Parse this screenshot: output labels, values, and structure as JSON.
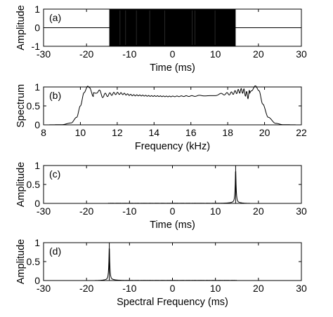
{
  "chart_data": [
    {
      "type": "line",
      "panel_label": "(a)",
      "xlabel": "Time (ms)",
      "ylabel": "Amplitude",
      "xlim": [
        -30,
        30
      ],
      "ylim": [
        -1,
        1
      ],
      "xticks": [
        "-30",
        "-20",
        "-10",
        "0",
        "10",
        "20",
        "30"
      ],
      "yticks": [
        "-1",
        "0",
        "1"
      ],
      "series": [
        {
          "description": "dense oscillating burst (chirp)",
          "x_start": -14.7,
          "x_end": 14.7,
          "amplitude": 1
        }
      ]
    },
    {
      "type": "line",
      "panel_label": "(b)",
      "xlabel": "Frequency (kHz)",
      "ylabel": "Spectrum",
      "xlim": [
        8,
        22
      ],
      "ylim": [
        0,
        1
      ],
      "xticks": [
        "8",
        "10",
        "12",
        "14",
        "16",
        "18",
        "20",
        "22"
      ],
      "yticks": [
        "0",
        "0.5",
        "1"
      ],
      "series": [
        {
          "x": [
            8,
            9,
            9.5,
            9.8,
            10.0,
            10.2,
            10.4,
            10.5,
            10.7,
            10.9,
            11.2,
            12,
            13,
            14,
            14.8,
            16,
            17,
            18,
            18.8,
            19.1,
            19.3,
            19.5,
            19.7,
            19.9,
            20.2,
            20.6,
            21,
            22
          ],
          "y": [
            0,
            0.005,
            0.05,
            0.2,
            0.5,
            0.85,
            1.02,
            0.98,
            0.75,
            0.92,
            0.78,
            0.83,
            0.78,
            0.76,
            0.75,
            0.76,
            0.78,
            0.82,
            0.9,
            0.78,
            0.9,
            1.03,
            0.9,
            0.55,
            0.2,
            0.04,
            0.005,
            0
          ]
        }
      ]
    },
    {
      "type": "line",
      "panel_label": "(c)",
      "xlabel": "Time (ms)",
      "ylabel": "Amplitude",
      "xlim": [
        -30,
        30
      ],
      "ylim": [
        0,
        1
      ],
      "xticks": [
        "-30",
        "-20",
        "-10",
        "0",
        "10",
        "20",
        "30"
      ],
      "yticks": [
        "0",
        "0.5",
        "1"
      ],
      "series": [
        {
          "peak_x": 14.7,
          "peak_y": 1
        }
      ]
    },
    {
      "type": "line",
      "panel_label": "(d)",
      "xlabel": "Spectral Frequency (ms)",
      "ylabel": "Amplitude",
      "xlim": [
        -30,
        30
      ],
      "ylim": [
        0,
        1
      ],
      "xticks": [
        "-30",
        "-20",
        "-10",
        "0",
        "10",
        "20",
        "30"
      ],
      "yticks": [
        "0",
        "0.5",
        "1"
      ],
      "series": [
        {
          "peak_x": -14.7,
          "peak_y": 1
        }
      ]
    }
  ]
}
